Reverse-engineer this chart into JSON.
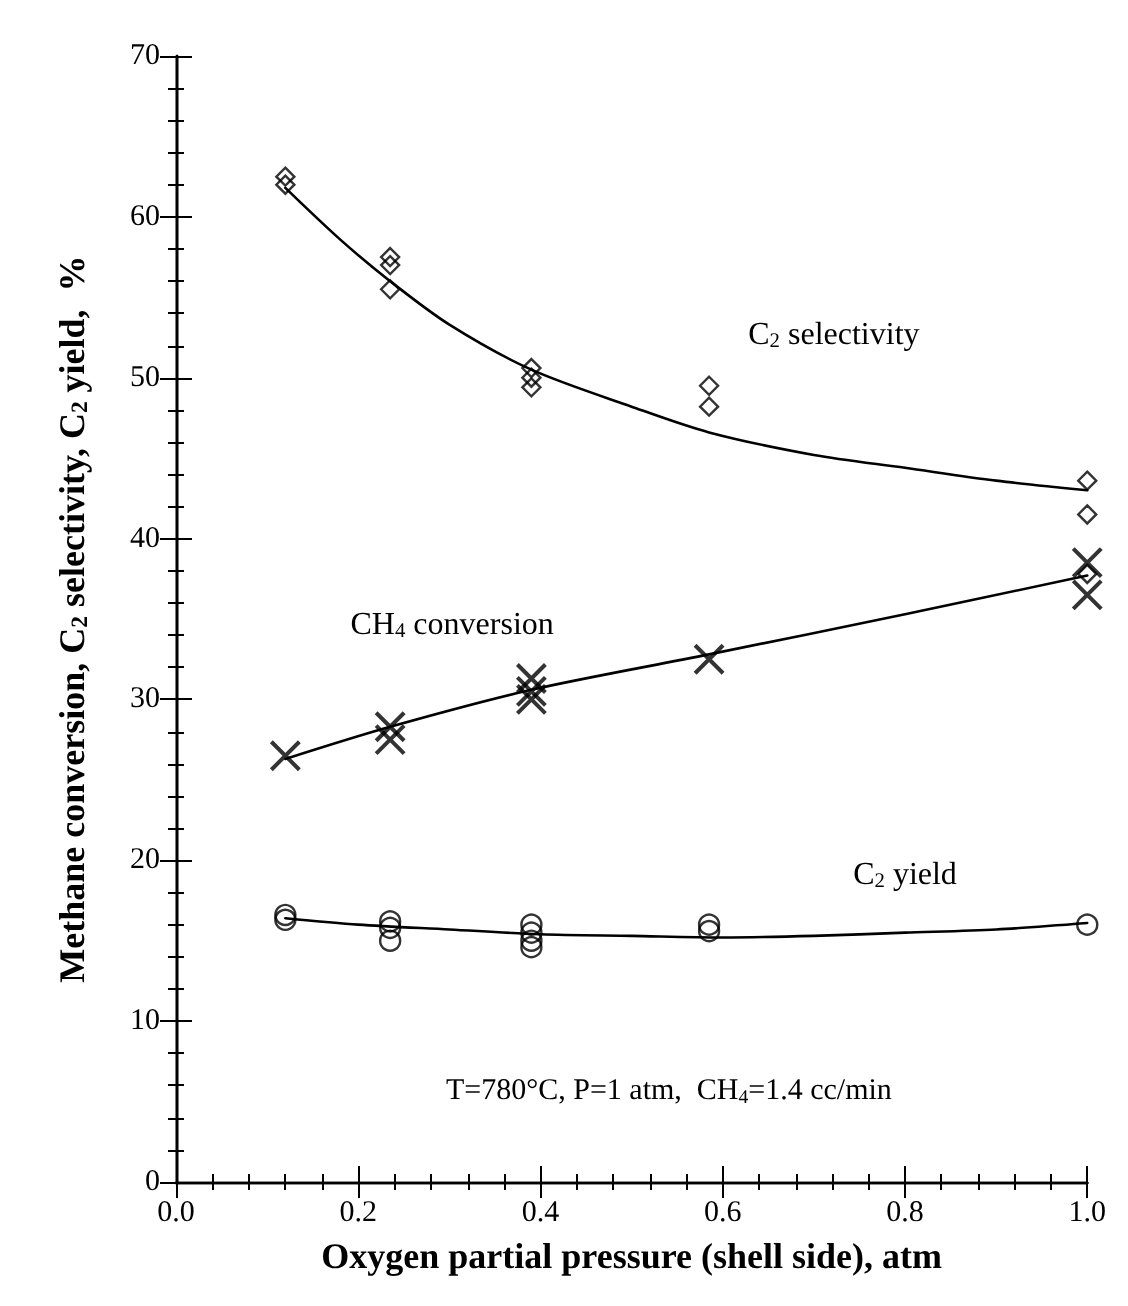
{
  "chart_data": {
    "type": "scatter",
    "xlabel": "Oxygen partial pressure (shell side), atm",
    "ylabel": "Methane conversion, C$_{2}$ selectivity, C$_{2}$ yield,  %",
    "xlim": [
      0,
      1
    ],
    "xticks": [
      {
        "value": 0,
        "label": "0.0"
      },
      {
        "value": 0.2,
        "label": "0.2"
      },
      {
        "value": 0.4,
        "label": "0.4"
      },
      {
        "value": 0.6,
        "label": "0.6"
      },
      {
        "value": 0.8,
        "label": "0.8"
      },
      {
        "value": 1,
        "label": "1.0"
      }
    ],
    "ylim": [
      0,
      70
    ],
    "yticks": [
      0,
      10,
      20,
      30,
      40,
      50,
      60,
      70
    ],
    "grid": false,
    "series": [
      {
        "marker": "diamond",
        "color": "#000000",
        "x": [
          0.12,
          0.12,
          0.235,
          0.235,
          0.235,
          0.39,
          0.39,
          0.39,
          0.585,
          0.585,
          1.0,
          1.0,
          1.0
        ],
        "values": [
          62.5,
          62.0,
          57.5,
          57.0,
          55.5,
          50.6,
          50.0,
          49.4,
          49.5,
          48.2,
          43.6,
          41.5,
          37.8
        ]
      },
      {
        "type": "line",
        "name": "C$_{2}$ selectivity",
        "marker": "none",
        "line_style": "solid",
        "color": "#000000",
        "x": [
          0.12,
          0.18,
          0.235,
          0.3,
          0.39,
          0.5,
          0.585,
          0.7,
          0.8,
          0.9,
          1.0
        ],
        "values": [
          61.8,
          58.6,
          56.0,
          53.3,
          50.5,
          48.2,
          46.6,
          45.2,
          44.4,
          43.6,
          43.0
        ]
      },
      {
        "marker": "cross",
        "color": "#000000",
        "x": [
          0.12,
          0.235,
          0.235,
          0.39,
          0.39,
          0.39,
          0.585,
          1.0,
          1.0
        ],
        "values": [
          26.5,
          28.3,
          27.5,
          31.3,
          30.5,
          30.0,
          32.5,
          38.5,
          36.5
        ]
      },
      {
        "type": "line",
        "name": "CH$_{4}$ conversion",
        "marker": "none",
        "line_style": "solid",
        "color": "#000000",
        "x": [
          0.12,
          0.235,
          0.39,
          0.585,
          0.8,
          1.0
        ],
        "values": [
          26.3,
          28.3,
          30.6,
          32.8,
          35.3,
          37.7
        ]
      },
      {
        "marker": "circle",
        "color": "#000000",
        "x": [
          0.12,
          0.12,
          0.235,
          0.235,
          0.235,
          0.39,
          0.39,
          0.39,
          0.39,
          0.585,
          0.585,
          1.0
        ],
        "values": [
          16.6,
          16.3,
          16.2,
          15.8,
          15.0,
          16.0,
          15.5,
          15.0,
          14.6,
          16.0,
          15.6,
          16.0
        ]
      },
      {
        "type": "line",
        "name": "C$_{2}$ yield",
        "marker": "none",
        "line_style": "solid",
        "color": "#000000",
        "x": [
          0.12,
          0.2,
          0.3,
          0.4,
          0.5,
          0.6,
          0.7,
          0.8,
          0.9,
          1.0
        ],
        "values": [
          16.4,
          16.0,
          15.7,
          15.4,
          15.3,
          15.2,
          15.3,
          15.5,
          15.7,
          16.1
        ]
      }
    ],
    "annotations": [
      "T=780°C, P=1 atm,  CH$_{4}$=1.4 cc/min"
    ]
  }
}
